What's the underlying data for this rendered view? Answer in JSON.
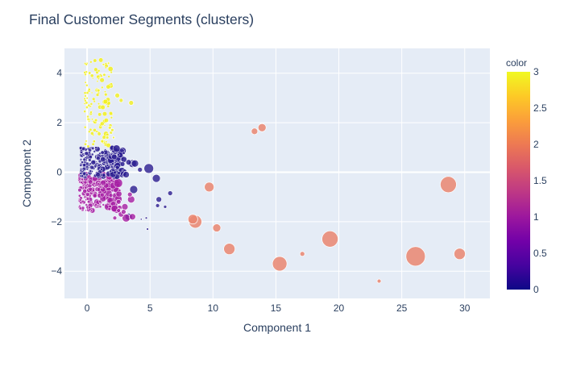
{
  "chart_data": {
    "type": "scatter",
    "title": "Final Customer Segments (clusters)",
    "xlabel": "Component 1",
    "ylabel": "Component 2",
    "xlim": [
      -1.8,
      32
    ],
    "ylim": [
      -5.1,
      5
    ],
    "x_ticks": [
      0,
      5,
      10,
      15,
      20,
      25,
      30
    ],
    "y_ticks": [
      -4,
      -2,
      0,
      2,
      4
    ],
    "grid": true,
    "colorbar": {
      "title": "color",
      "range": [
        0,
        3
      ],
      "ticks": [
        0,
        0.5,
        1,
        1.5,
        2,
        2.5,
        3
      ],
      "colorscale": [
        "#0d0887",
        "#46039f",
        "#7201a8",
        "#9c179e",
        "#bd3786",
        "#d8576b",
        "#ed7953",
        "#fb9f3a",
        "#fdca26",
        "#f0f921"
      ]
    },
    "marker_colors": {
      "0": "#2a1d90",
      "1": "#a61ea3",
      "2": "#ea8670",
      "3": "#f2f01e"
    },
    "series": [
      {
        "cluster": 2,
        "points": [
          [
            28.7,
            -0.5,
            10
          ],
          [
            26.1,
            -3.4,
            12
          ],
          [
            19.3,
            -2.7,
            10
          ],
          [
            15.3,
            -3.7,
            9
          ],
          [
            11.3,
            -3.1,
            7
          ],
          [
            8.6,
            -2.0,
            8
          ],
          [
            8.4,
            -1.9,
            6
          ],
          [
            9.7,
            -0.6,
            6
          ],
          [
            10.3,
            -2.25,
            5
          ],
          [
            13.9,
            1.8,
            5
          ],
          [
            13.3,
            1.65,
            4
          ],
          [
            29.6,
            -3.3,
            7
          ],
          [
            17.1,
            -3.3,
            3
          ],
          [
            23.2,
            -4.4,
            2.5
          ]
        ]
      },
      {
        "cluster": 0,
        "points": [
          [
            4.9,
            0.15,
            6
          ],
          [
            5.5,
            -0.25,
            5
          ],
          [
            3.6,
            0.35,
            5
          ],
          [
            3.7,
            -0.7,
            5
          ],
          [
            5.7,
            -1.1,
            3.5
          ],
          [
            6.6,
            -0.85,
            3
          ],
          [
            3.3,
            -1.8,
            4.5
          ],
          [
            4.2,
            0.1,
            3
          ],
          [
            5.6,
            -1.35,
            2.5
          ],
          [
            6.2,
            -1.4,
            2
          ],
          [
            4.8,
            -2.3,
            1.5
          ],
          [
            4.7,
            -1.85,
            1.5
          ],
          [
            4.3,
            -1.9,
            1.2
          ],
          [
            3.1,
            -0.1,
            4
          ],
          [
            3.3,
            0.4,
            3.5
          ],
          [
            3.8,
            0.35,
            4.5
          ]
        ]
      },
      {
        "cluster": 1,
        "points": [
          [
            3.1,
            -1.85,
            5
          ],
          [
            3.6,
            -1.8,
            4
          ],
          [
            3.5,
            -1.1,
            4.5
          ],
          [
            3.0,
            -1.4,
            4
          ],
          [
            2.7,
            -1.7,
            3.5
          ],
          [
            3.4,
            -0.9,
            3
          ],
          [
            2.5,
            -1.2,
            3
          ],
          [
            2.9,
            -1.6,
            3
          ],
          [
            2.5,
            -1.55,
            2.5
          ],
          [
            2.2,
            -1.85,
            2.5
          ]
        ]
      },
      {
        "cluster": 3,
        "points": [
          [
            3.5,
            2.8,
            3
          ],
          [
            2.4,
            3.1,
            3
          ],
          [
            2.7,
            2.9,
            2.5
          ],
          [
            1.8,
            1.8,
            2
          ],
          [
            1.9,
            1.6,
            2
          ],
          [
            1.6,
            1.4,
            2
          ],
          [
            1.2,
            1.25,
            2
          ],
          [
            1.7,
            4.4,
            1.5
          ],
          [
            1.3,
            4.35,
            1.5
          ],
          [
            2.0,
            1.7,
            2
          ],
          [
            0.9,
            3.3,
            2
          ],
          [
            0.7,
            2.1,
            2
          ],
          [
            2.1,
            1.4,
            1.5
          ]
        ]
      }
    ]
  }
}
